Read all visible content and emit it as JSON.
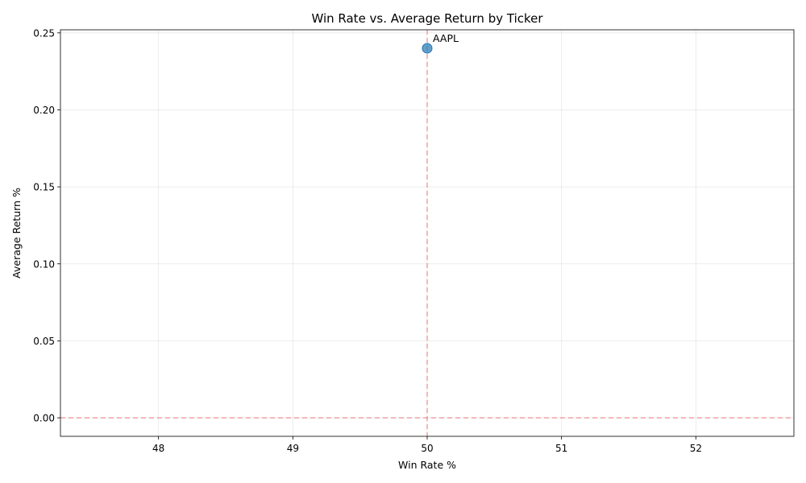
{
  "chart_data": {
    "type": "scatter",
    "title": "Win Rate vs. Average Return by Ticker",
    "xlabel": "Win Rate %",
    "ylabel": "Average Return %",
    "xlim": [
      47.27,
      52.73
    ],
    "ylim": [
      -0.012,
      0.252
    ],
    "xticks": [
      48,
      49,
      50,
      51,
      52
    ],
    "yticks": [
      0.0,
      0.05,
      0.1,
      0.15,
      0.2,
      0.25
    ],
    "xtick_labels": [
      "48",
      "49",
      "50",
      "51",
      "52"
    ],
    "ytick_labels": [
      "0.00",
      "0.05",
      "0.10",
      "0.15",
      "0.20",
      "0.25"
    ],
    "grid": true,
    "points": [
      {
        "label": "AAPL",
        "x": 50,
        "y": 0.24
      }
    ],
    "reference_lines": {
      "horizontal_y": 0,
      "vertical_x": 50
    },
    "colors": {
      "marker": "#1f77b4",
      "reference": "#f08080"
    }
  }
}
